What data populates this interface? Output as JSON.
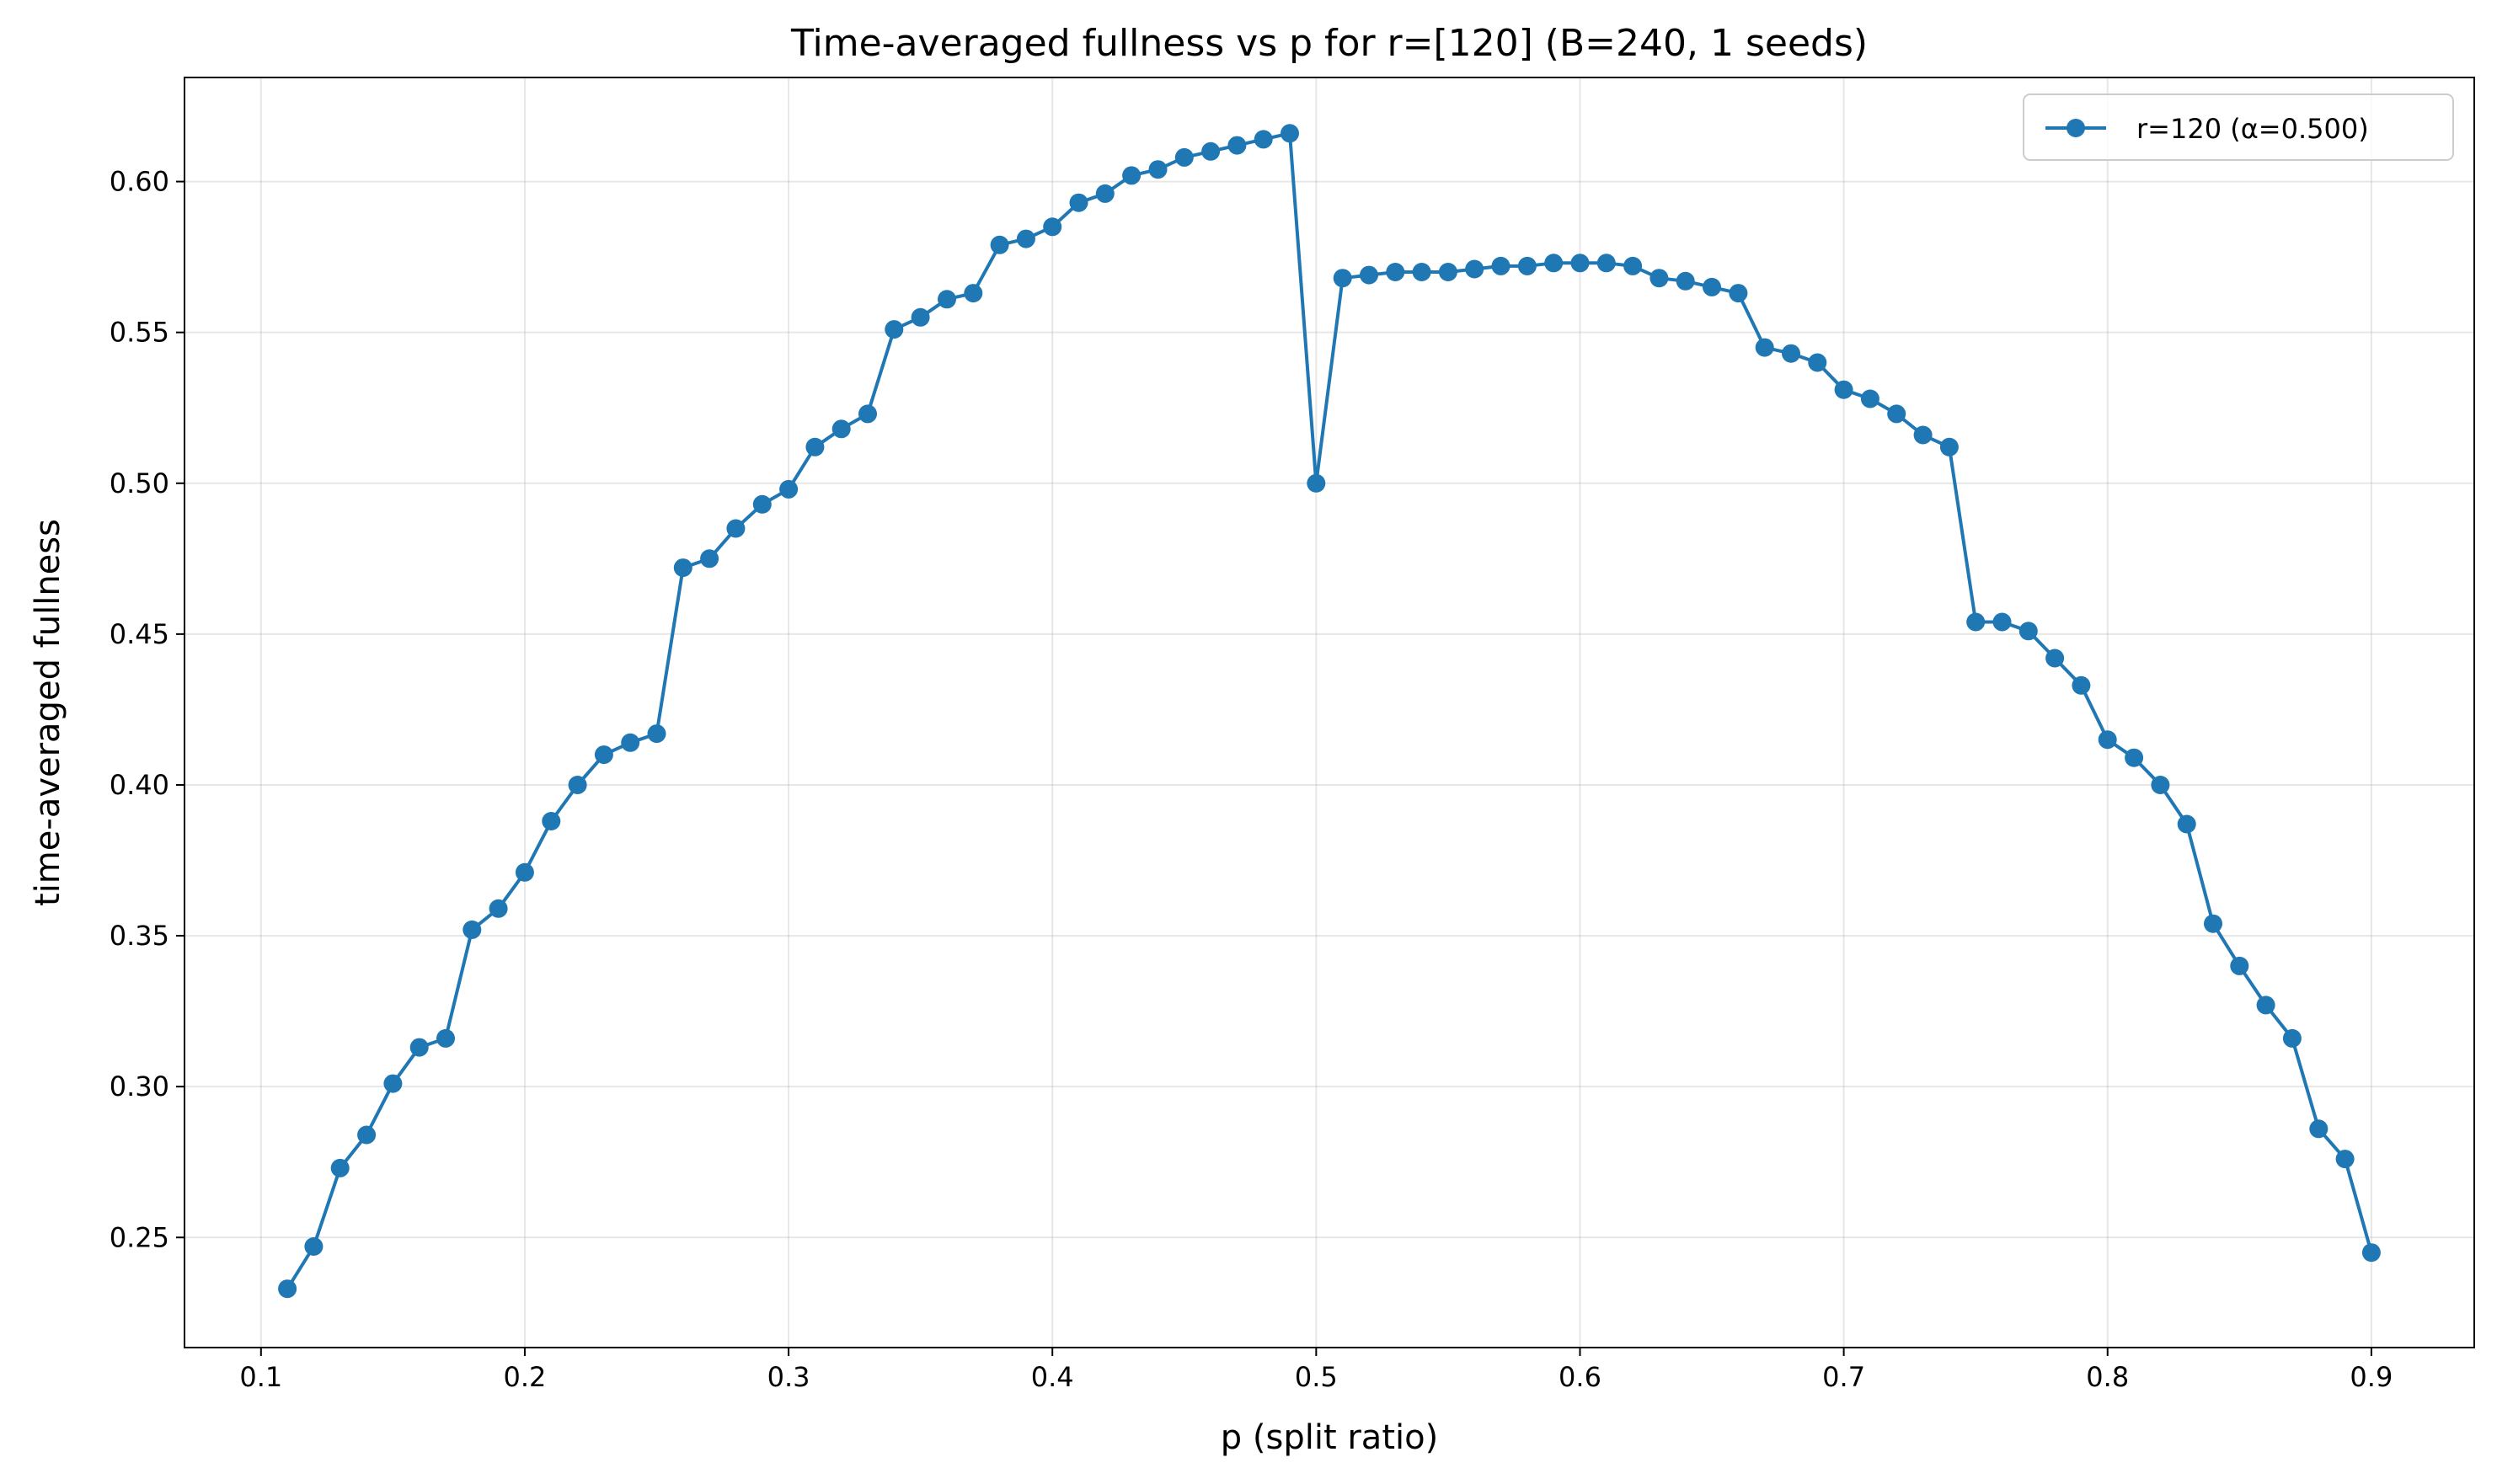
{
  "chart_data": {
    "type": "line",
    "title": "Time-averaged fullness vs p for r=[120] (B=240, 1 seeds)",
    "xlabel": "p (split ratio)",
    "ylabel": "time-averaged fullness",
    "xlim": [
      0.071,
      0.939
    ],
    "ylim": [
      0.2135,
      0.6345
    ],
    "xticks": [
      0.1,
      0.2,
      0.3,
      0.4,
      0.5,
      0.6,
      0.7,
      0.8,
      0.9
    ],
    "xtick_labels": [
      "0.1",
      "0.2",
      "0.3",
      "0.4",
      "0.5",
      "0.6",
      "0.7",
      "0.8",
      "0.9"
    ],
    "yticks": [
      0.25,
      0.3,
      0.35,
      0.4,
      0.45,
      0.5,
      0.55,
      0.6
    ],
    "ytick_labels": [
      "0.25",
      "0.30",
      "0.35",
      "0.40",
      "0.45",
      "0.50",
      "0.55",
      "0.60"
    ],
    "grid": true,
    "legend_position": "top-right",
    "series": [
      {
        "name": "r=120 (α=0.500)",
        "color": "#1f77b4",
        "marker": "circle",
        "x": [
          0.11,
          0.12,
          0.13,
          0.14,
          0.15,
          0.16,
          0.17,
          0.18,
          0.19,
          0.2,
          0.21,
          0.22,
          0.23,
          0.24,
          0.25,
          0.26,
          0.27,
          0.28,
          0.29,
          0.3,
          0.31,
          0.32,
          0.33,
          0.34,
          0.35,
          0.36,
          0.37,
          0.38,
          0.39,
          0.4,
          0.41,
          0.42,
          0.43,
          0.44,
          0.45,
          0.46,
          0.47,
          0.48,
          0.49,
          0.5,
          0.51,
          0.52,
          0.53,
          0.54,
          0.55,
          0.56,
          0.57,
          0.58,
          0.59,
          0.6,
          0.61,
          0.62,
          0.63,
          0.64,
          0.65,
          0.66,
          0.67,
          0.68,
          0.69,
          0.7,
          0.71,
          0.72,
          0.73,
          0.74,
          0.75,
          0.76,
          0.77,
          0.78,
          0.79,
          0.8,
          0.81,
          0.82,
          0.83,
          0.84,
          0.85,
          0.86,
          0.87,
          0.88,
          0.89,
          0.9
        ],
        "y": [
          0.233,
          0.247,
          0.273,
          0.284,
          0.301,
          0.313,
          0.316,
          0.352,
          0.359,
          0.371,
          0.388,
          0.4,
          0.41,
          0.414,
          0.417,
          0.472,
          0.475,
          0.485,
          0.493,
          0.498,
          0.512,
          0.518,
          0.523,
          0.551,
          0.555,
          0.561,
          0.563,
          0.579,
          0.581,
          0.585,
          0.593,
          0.596,
          0.602,
          0.604,
          0.608,
          0.61,
          0.612,
          0.614,
          0.616,
          0.5,
          0.568,
          0.569,
          0.57,
          0.57,
          0.57,
          0.571,
          0.572,
          0.572,
          0.573,
          0.573,
          0.573,
          0.572,
          0.568,
          0.567,
          0.565,
          0.563,
          0.545,
          0.543,
          0.54,
          0.531,
          0.528,
          0.523,
          0.516,
          0.512,
          0.454,
          0.454,
          0.451,
          0.442,
          0.433,
          0.415,
          0.409,
          0.4,
          0.387,
          0.354,
          0.34,
          0.327,
          0.316,
          0.286,
          0.276,
          0.245
        ]
      }
    ]
  }
}
